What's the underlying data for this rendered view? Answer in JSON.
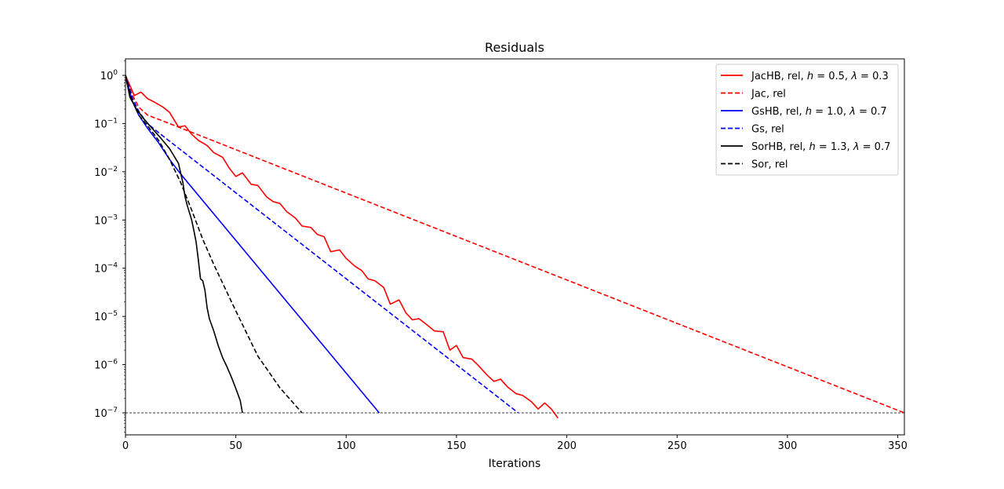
{
  "chart_data": {
    "type": "line",
    "title": "Residuals",
    "xlabel": "Iterations",
    "ylabel": "",
    "xlim": [
      0,
      353
    ],
    "ylog": true,
    "ylim": [
      3.5e-08,
      2.2
    ],
    "x_ticks": [
      0,
      50,
      100,
      150,
      200,
      250,
      300,
      350
    ],
    "x_tick_labels": [
      "0",
      "50",
      "100",
      "150",
      "200",
      "250",
      "300",
      "350"
    ],
    "y_ticks": [
      1.0,
      0.1,
      0.01,
      0.001,
      0.0001,
      1e-05,
      1e-06,
      1e-07
    ],
    "y_tick_labels": [
      {
        "base": "10",
        "exp": "0"
      },
      {
        "base": "10",
        "exp": "−1"
      },
      {
        "base": "10",
        "exp": "−2"
      },
      {
        "base": "10",
        "exp": "−3"
      },
      {
        "base": "10",
        "exp": "−4"
      },
      {
        "base": "10",
        "exp": "−5"
      },
      {
        "base": "10",
        "exp": "−6"
      },
      {
        "base": "10",
        "exp": "−7"
      }
    ],
    "threshold": {
      "y": 1e-07,
      "color": "#000000",
      "style": "dashed"
    },
    "legend_position": "top-right",
    "series": [
      {
        "name": "JacHB, rel, h = 0.5, λ = 0.3",
        "legend": {
          "prefix": "JacHB, rel, ",
          "h": "h",
          "h_val": " = 0.5, ",
          "l": "λ",
          "l_val": " = 0.3"
        },
        "color": "#ff0000",
        "style": "solid",
        "x": [
          0,
          4,
          7,
          10,
          13,
          17,
          20,
          24,
          27,
          30,
          33,
          37,
          40,
          44,
          47,
          50,
          53,
          57,
          60,
          64,
          67,
          70,
          73,
          77,
          80,
          84,
          87,
          90,
          93,
          97,
          100,
          104,
          107,
          110,
          113,
          117,
          120,
          124,
          127,
          130,
          133,
          137,
          140,
          144,
          147,
          150,
          153,
          157,
          160,
          164,
          167,
          170,
          173,
          177,
          180,
          184,
          187,
          190,
          193,
          196
        ],
        "y": [
          1,
          0.38,
          0.45,
          0.33,
          0.28,
          0.22,
          0.17,
          0.085,
          0.09,
          0.06,
          0.045,
          0.035,
          0.025,
          0.02,
          0.012,
          0.008,
          0.0095,
          0.0055,
          0.0052,
          0.003,
          0.0024,
          0.0022,
          0.0015,
          0.0011,
          0.00075,
          0.0007,
          0.0005,
          0.00045,
          0.00022,
          0.00024,
          0.00016,
          0.00011,
          9e-05,
          6e-05,
          5.5e-05,
          4e-05,
          1.8e-05,
          2.2e-05,
          1.2e-05,
          8.5e-06,
          9e-06,
          6.5e-06,
          5e-06,
          4.8e-06,
          2e-06,
          2.5e-06,
          1.4e-06,
          1.3e-06,
          9.5e-07,
          6e-07,
          4.5e-07,
          5e-07,
          3.5e-07,
          2.5e-07,
          2.3e-07,
          1.7e-07,
          1.2e-07,
          1.6e-07,
          1.2e-07,
          7.8e-08
        ]
      },
      {
        "name": "Jac, rel",
        "color": "#ff0000",
        "style": "dashed",
        "x": [
          0,
          3,
          6,
          10,
          20,
          353
        ],
        "y": [
          1,
          0.4,
          0.22,
          0.15,
          0.1,
          1e-07
        ]
      },
      {
        "name": "GsHB, rel, h = 1.0, λ = 0.7",
        "legend": {
          "prefix": "GsHB, rel, ",
          "h": "h",
          "h_val": " = 1.0, ",
          "l": "λ",
          "l_val": " = 0.7"
        },
        "color": "#0000ff",
        "style": "solid",
        "x": [
          0,
          3,
          6,
          10,
          15,
          20,
          25,
          115
        ],
        "y": [
          1,
          0.3,
          0.15,
          0.08,
          0.04,
          0.018,
          0.009,
          1e-07
        ]
      },
      {
        "name": "Gs, rel",
        "color": "#0000ff",
        "style": "dashed",
        "x": [
          0,
          3,
          6,
          10,
          15,
          178
        ],
        "y": [
          1,
          0.35,
          0.18,
          0.1,
          0.065,
          1e-07
        ]
      },
      {
        "name": "SorHB, rel, h = 1.3, λ = 0.7",
        "legend": {
          "prefix": "SorHB, rel, ",
          "h": "h",
          "h_val": " = 1.3, ",
          "l": "λ",
          "l_val": " = 0.7"
        },
        "color": "#000000",
        "style": "solid",
        "x": [
          0,
          2,
          5,
          8,
          12,
          16,
          20,
          24,
          26,
          27,
          28,
          30,
          31,
          32,
          33,
          34,
          35,
          36,
          37,
          38,
          40,
          42,
          44,
          46,
          48,
          50,
          52,
          53
        ],
        "y": [
          1,
          0.35,
          0.2,
          0.13,
          0.08,
          0.05,
          0.03,
          0.015,
          0.006,
          0.003,
          0.002,
          0.001,
          0.0006,
          0.00035,
          0.00015,
          6e-05,
          5.5e-05,
          3.5e-05,
          1.5e-05,
          9e-06,
          5e-06,
          2.5e-06,
          1.4e-06,
          9e-07,
          5.5e-07,
          3.2e-07,
          1.8e-07,
          1e-07
        ]
      },
      {
        "name": "Sor, rel",
        "color": "#000000",
        "style": "dashed",
        "x": [
          0,
          3,
          6,
          10,
          15,
          20,
          25,
          30,
          35,
          40,
          50,
          60,
          70,
          80
        ],
        "y": [
          1,
          0.3,
          0.15,
          0.09,
          0.045,
          0.018,
          0.006,
          0.0016,
          0.0004,
          0.00012,
          1.3e-05,
          1.5e-06,
          3.3e-07,
          1e-07
        ]
      }
    ]
  }
}
